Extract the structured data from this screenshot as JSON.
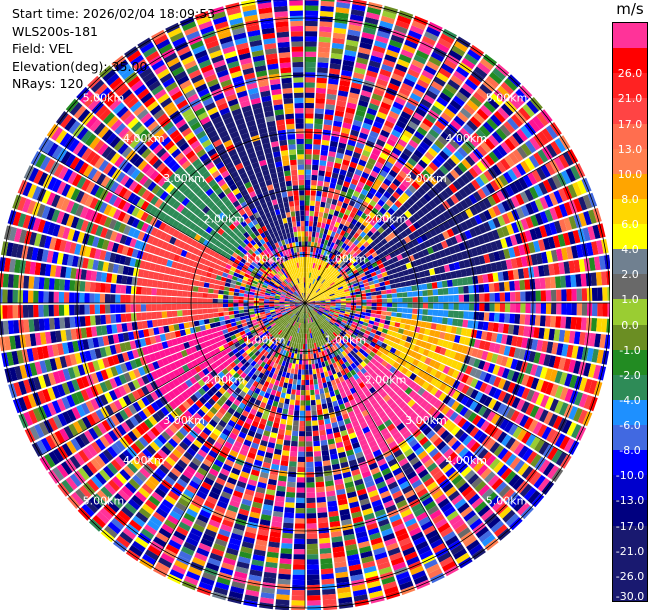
{
  "header": {
    "start_time": "Start time: 2026/02/04 18:09:53",
    "instrument": "WLS200s-181",
    "field": "Field: VEL",
    "elevation": "Elevation(deg): 35.00",
    "nrays": "NRays: 120"
  },
  "colorbar": {
    "unit": "m/s",
    "ticks": [
      "26.0",
      "21.0",
      "17.0",
      "13.0",
      "10.0",
      "8.0",
      "6.0",
      "4.0",
      "2.0",
      "1.0",
      "0.0",
      "-1.0",
      "-2.0",
      "-4.0",
      "-6.0",
      "-8.0",
      "-10.0",
      "-13.0",
      "-17.0",
      "-21.0",
      "-26.0",
      "-30.0"
    ],
    "segment_colors": [
      "#ff3399",
      "#ff0000",
      "#ff2222",
      "#ff4444",
      "#ff6e4f",
      "#ff7f50",
      "#ffa500",
      "#ffd700",
      "#ffff00",
      "#708090",
      "#696969",
      "#9acd32",
      "#6b8e23",
      "#228b22",
      "#2e8b57",
      "#1e90ff",
      "#4169e1",
      "#0000ff",
      "#0000cd",
      "#000080",
      "#191970"
    ]
  },
  "chart_data": {
    "type": "ppi",
    "field": "VEL",
    "unit": "m/s",
    "nrays": 120,
    "elevation_deg": 35.0,
    "range_rings_km": [
      1.0,
      2.0,
      3.0,
      4.0,
      5.0
    ],
    "ring_labels": [
      "1.00km",
      "2.00km",
      "3.00km",
      "4.00km",
      "5.00km"
    ],
    "max_range_km": 5.35,
    "min_range_km": 0.85,
    "color_levels": [
      -30,
      -26,
      -21,
      -17,
      -13,
      -10,
      -8,
      -6,
      -4,
      -2,
      -1,
      0,
      1,
      2,
      4,
      6,
      8,
      10,
      13,
      17,
      21,
      26
    ],
    "dominant_sectors": [
      {
        "az_start": 330,
        "az_end": 350,
        "range_km": [
          1.2,
          3.6
        ],
        "velocity": -27
      },
      {
        "az_start": 300,
        "az_end": 325,
        "range_km": [
          1.5,
          3.2
        ],
        "velocity": -7
      },
      {
        "az_start": 260,
        "az_end": 300,
        "range_km": [
          1.5,
          3.0
        ],
        "velocity": 12
      },
      {
        "az_start": 230,
        "az_end": 255,
        "range_km": [
          1.5,
          3.0
        ],
        "velocity": 27
      },
      {
        "az_start": 45,
        "az_end": 80,
        "range_km": [
          1.5,
          3.6
        ],
        "velocity": -27
      },
      {
        "az_start": 80,
        "az_end": 100,
        "range_km": [
          1.5,
          3.0
        ],
        "velocity": -8
      },
      {
        "az_start": 100,
        "az_end": 125,
        "range_km": [
          1.5,
          3.0
        ],
        "velocity": 4
      },
      {
        "az_start": 125,
        "az_end": 160,
        "range_km": [
          1.5,
          3.0
        ],
        "velocity": 24
      },
      {
        "az_start": 330,
        "az_end": 360,
        "range_km": [
          0.0,
          0.85
        ],
        "velocity": 3
      },
      {
        "az_start": 0,
        "az_end": 80,
        "range_km": [
          0.0,
          0.85
        ],
        "velocity": 3
      },
      {
        "az_start": 130,
        "az_end": 240,
        "range_km": [
          0.0,
          0.85
        ],
        "velocity": -3
      }
    ]
  }
}
